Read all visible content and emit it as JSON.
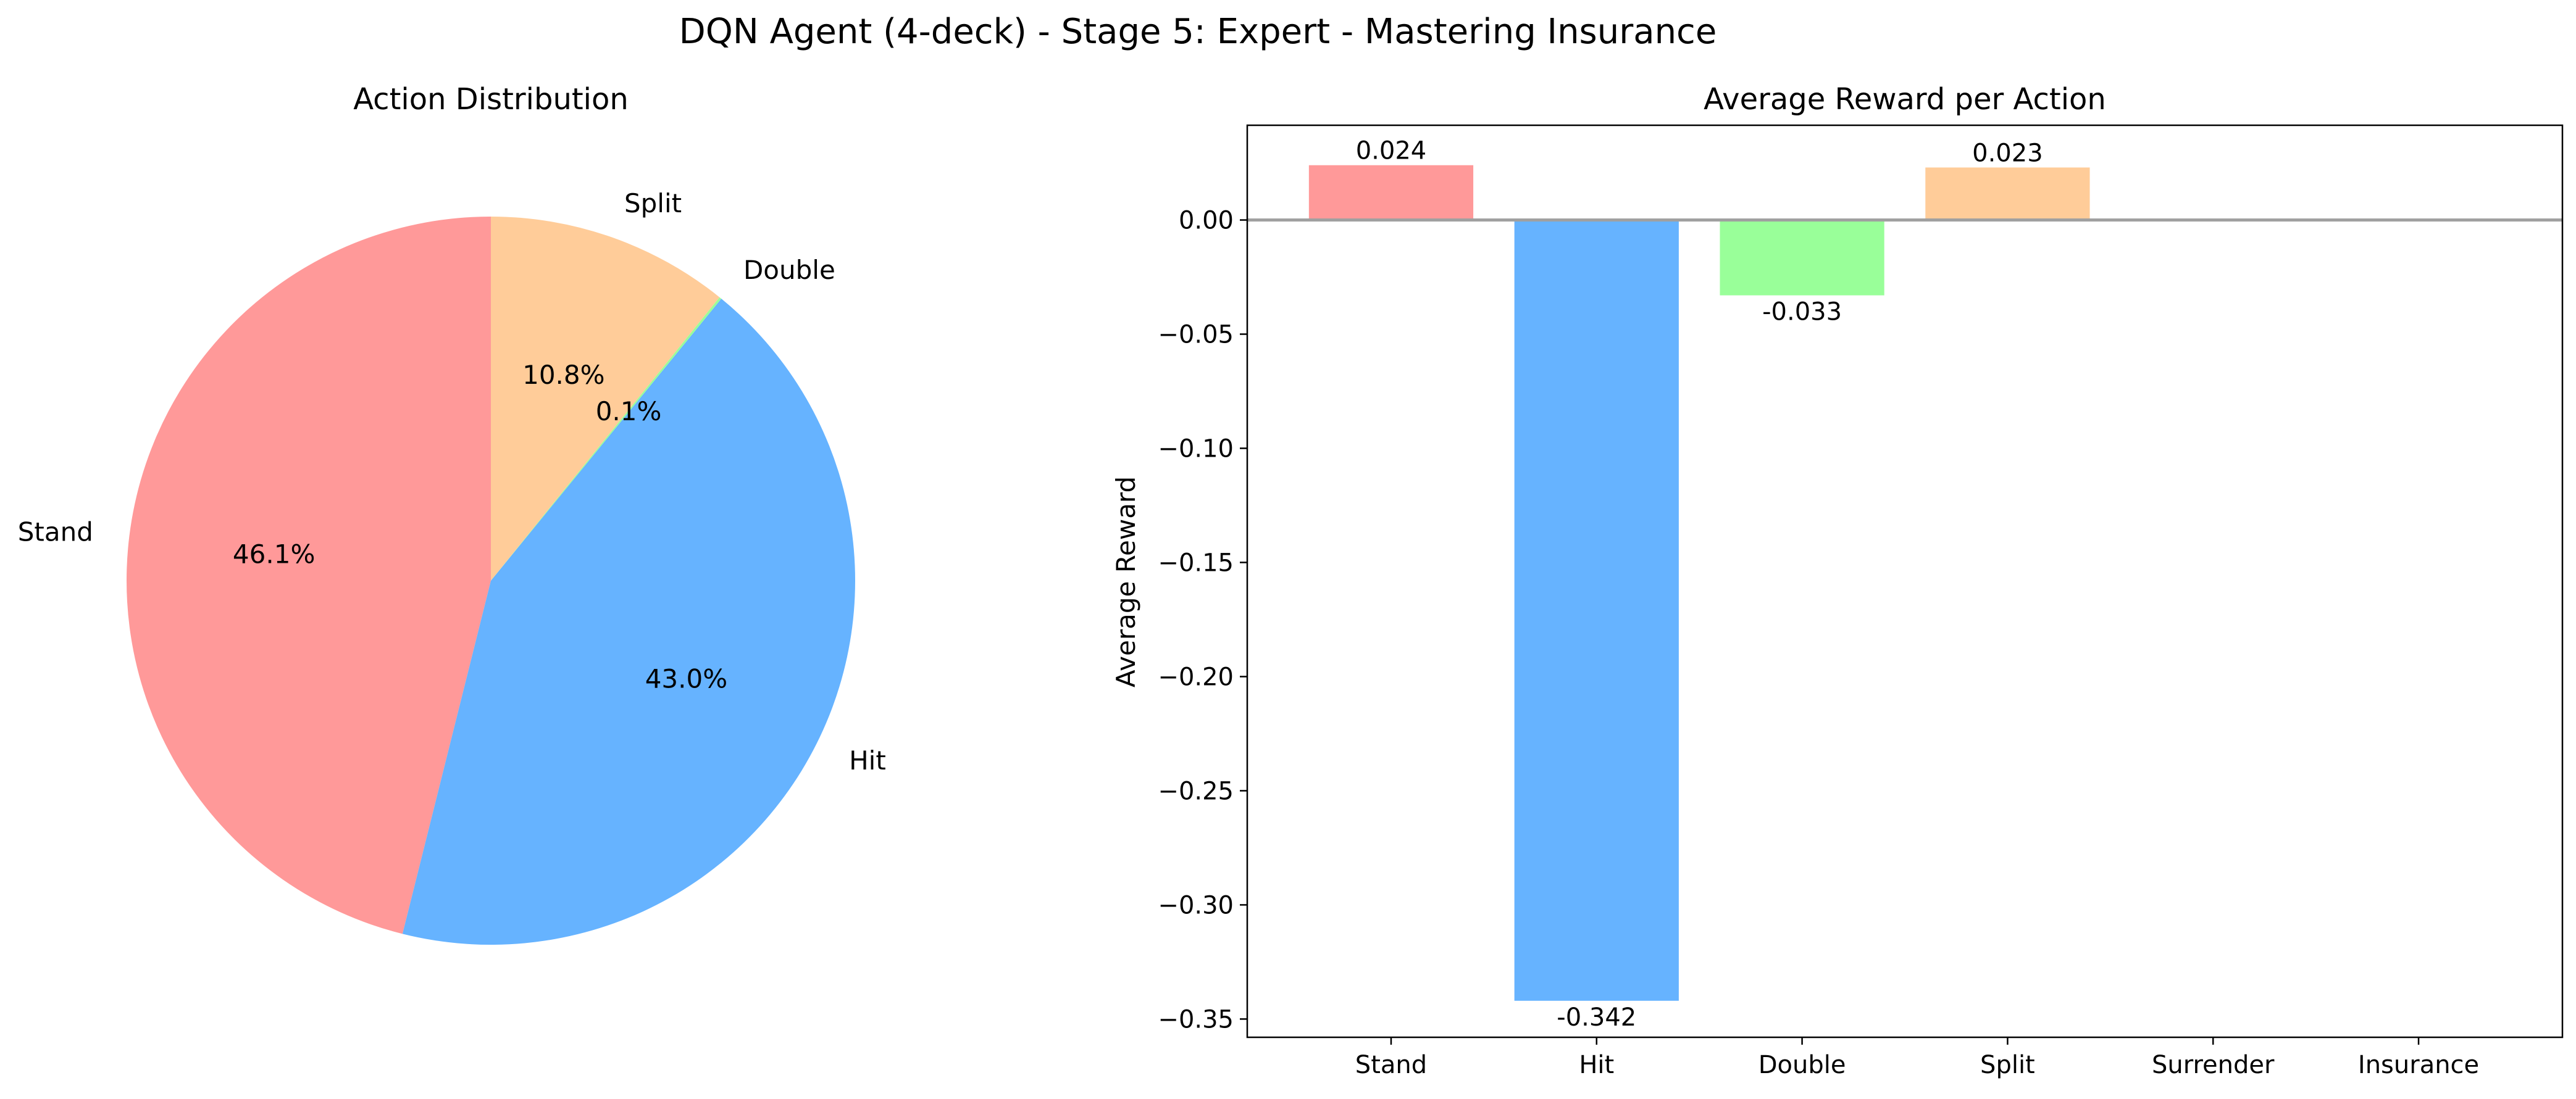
{
  "figure": {
    "suptitle": "DQN Agent (4-deck) - Stage 5: Expert - Mastering Insurance"
  },
  "colors": {
    "stand": "#ff9999",
    "hit": "#66b3ff",
    "double": "#99ff99",
    "split": "#ffcc99",
    "zero_line": "#a0a0a0",
    "axis": "#000000"
  },
  "chart_data": [
    {
      "type": "pie",
      "title": "Action Distribution",
      "start_angle_deg": 90,
      "direction": "counterclockwise",
      "slices": [
        {
          "label": "Stand",
          "value": 46.1,
          "pct_label": "46.1%",
          "color": "#ff9999"
        },
        {
          "label": "Hit",
          "value": 43.0,
          "pct_label": "43.0%",
          "color": "#66b3ff"
        },
        {
          "label": "Double",
          "value": 0.1,
          "pct_label": "0.1%",
          "color": "#99ff99"
        },
        {
          "label": "Split",
          "value": 10.8,
          "pct_label": "10.8%",
          "color": "#ffcc99"
        }
      ]
    },
    {
      "type": "bar",
      "title": "Average Reward per Action",
      "xlabel": "",
      "ylabel": "Average Reward",
      "categories": [
        "Stand",
        "Hit",
        "Double",
        "Split",
        "Surrender",
        "Insurance"
      ],
      "values": [
        0.024,
        -0.342,
        -0.033,
        0.023,
        null,
        null
      ],
      "value_labels": [
        "0.024",
        "-0.342",
        "-0.033",
        "0.023",
        "",
        ""
      ],
      "colors": [
        "#ff9999",
        "#66b3ff",
        "#99ff99",
        "#ffcc99",
        "#ff99cc",
        "#ffd700"
      ],
      "ylim": [
        -0.358,
        0.0415
      ],
      "yticks": [
        0.0,
        -0.05,
        -0.1,
        -0.15,
        -0.2,
        -0.25,
        -0.3,
        -0.35
      ],
      "ytick_labels": [
        "0.00",
        "−0.05",
        "−0.10",
        "−0.15",
        "−0.20",
        "−0.25",
        "−0.30",
        "−0.35"
      ],
      "zero_line": true,
      "grid": false
    }
  ]
}
